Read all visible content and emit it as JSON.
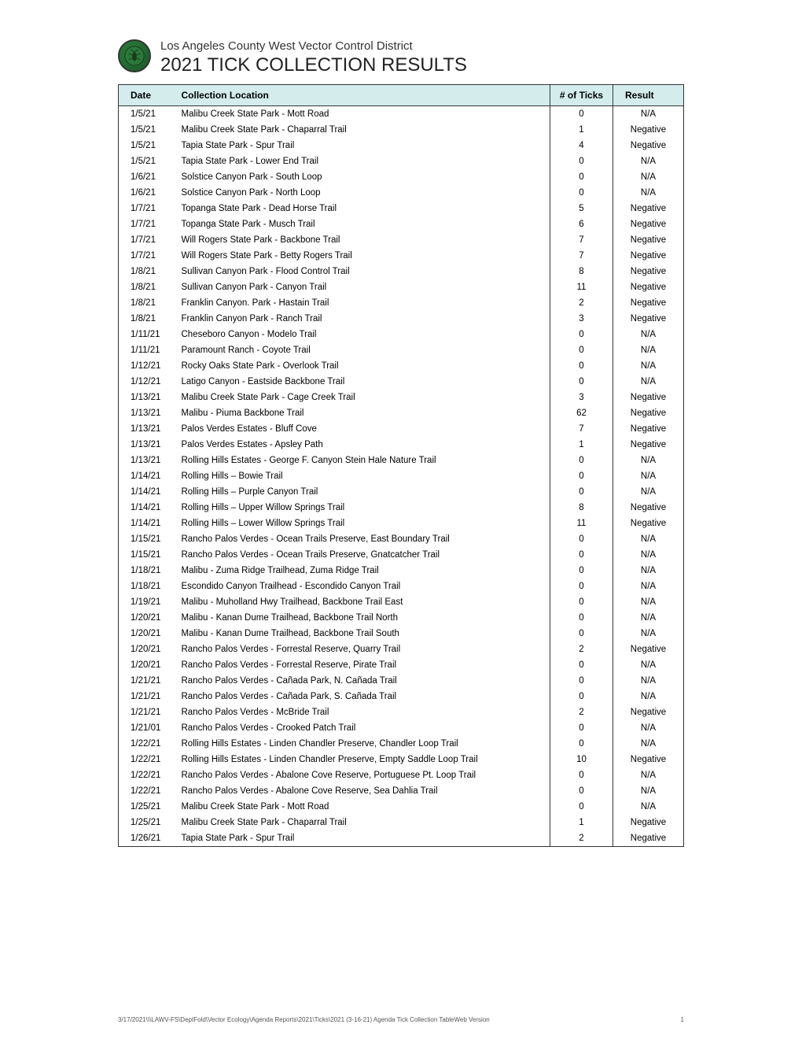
{
  "header": {
    "subtitle": "Los Angeles County West Vector Control District",
    "title": "2021 TICK COLLECTION RESULTS"
  },
  "table": {
    "columns": [
      "Date",
      "Collection Location",
      "# of Ticks",
      "Result"
    ],
    "rows": [
      [
        "1/5/21",
        "Malibu Creek State Park - Mott Road",
        "0",
        "N/A"
      ],
      [
        "1/5/21",
        "Malibu Creek State Park - Chaparral Trail",
        "1",
        "Negative"
      ],
      [
        "1/5/21",
        "Tapia State Park - Spur Trail",
        "4",
        "Negative"
      ],
      [
        "1/5/21",
        "Tapia State Park - Lower End Trail",
        "0",
        "N/A"
      ],
      [
        "1/6/21",
        "Solstice Canyon Park - South Loop",
        "0",
        "N/A"
      ],
      [
        "1/6/21",
        "Solstice Canyon Park - North Loop",
        "0",
        "N/A"
      ],
      [
        "1/7/21",
        "Topanga State Park - Dead Horse Trail",
        "5",
        "Negative"
      ],
      [
        "1/7/21",
        "Topanga State Park - Musch Trail",
        "6",
        "Negative"
      ],
      [
        "1/7/21",
        "Will Rogers State Park - Backbone Trail",
        "7",
        "Negative"
      ],
      [
        "1/7/21",
        "Will Rogers State Park -  Betty Rogers Trail",
        "7",
        "Negative"
      ],
      [
        "1/8/21",
        "Sullivan Canyon Park - Flood Control Trail",
        "8",
        "Negative"
      ],
      [
        "1/8/21",
        "Sullivan Canyon Park - Canyon Trail",
        "11",
        "Negative"
      ],
      [
        "1/8/21",
        "Franklin Canyon. Park - Hastain Trail",
        "2",
        "Negative"
      ],
      [
        "1/8/21",
        "Franklin Canyon Park - Ranch Trail",
        "3",
        "Negative"
      ],
      [
        "1/11/21",
        "Cheseboro Canyon - Modelo Trail",
        "0",
        "N/A"
      ],
      [
        "1/11/21",
        "Paramount Ranch - Coyote Trail",
        "0",
        "N/A"
      ],
      [
        "1/12/21",
        "Rocky Oaks State Park - Overlook Trail",
        "0",
        "N/A"
      ],
      [
        "1/12/21",
        "Latigo Canyon - Eastside Backbone Trail",
        "0",
        "N/A"
      ],
      [
        "1/13/21",
        "Malibu Creek State Park - Cage Creek Trail",
        "3",
        "Negative"
      ],
      [
        "1/13/21",
        "Malibu - Piuma Backbone Trail",
        "62",
        "Negative"
      ],
      [
        "1/13/21",
        "Palos Verdes Estates - Bluff Cove",
        "7",
        "Negative"
      ],
      [
        "1/13/21",
        "Palos Verdes Estates - Apsley Path",
        "1",
        "Negative"
      ],
      [
        "1/13/21",
        "Rolling Hills Estates - George F. Canyon Stein Hale Nature Trail",
        "0",
        "N/A"
      ],
      [
        "1/14/21",
        "Rolling Hills – Bowie Trail",
        "0",
        "N/A"
      ],
      [
        "1/14/21",
        "Rolling Hills – Purple Canyon Trail",
        "0",
        "N/A"
      ],
      [
        "1/14/21",
        "Rolling Hills – Upper Willow Springs Trail",
        "8",
        "Negative"
      ],
      [
        "1/14/21",
        "Rolling Hills – Lower Willow Springs Trail",
        "11",
        "Negative"
      ],
      [
        "1/15/21",
        "Rancho Palos Verdes - Ocean Trails Preserve, East Boundary Trail",
        "0",
        "N/A"
      ],
      [
        "1/15/21",
        "Rancho Palos Verdes - Ocean Trails Preserve, Gnatcatcher Trail",
        "0",
        "N/A"
      ],
      [
        "1/18/21",
        "Malibu - Zuma Ridge Trailhead, Zuma Ridge Trail",
        "0",
        "N/A"
      ],
      [
        "1/18/21",
        "Escondido Canyon Trailhead - Escondido Canyon Trail",
        "0",
        "N/A"
      ],
      [
        "1/19/21",
        "Malibu - Muholland Hwy Trailhead, Backbone Trail East",
        "0",
        "N/A"
      ],
      [
        "1/20/21",
        "Malibu - Kanan Dume Trailhead, Backbone Trail North",
        "0",
        "N/A"
      ],
      [
        "1/20/21",
        "Malibu - Kanan Dume Trailhead, Backbone Trail South",
        "0",
        "N/A"
      ],
      [
        "1/20/21",
        "Rancho Palos Verdes - Forrestal Reserve, Quarry Trail",
        "2",
        "Negative"
      ],
      [
        "1/20/21",
        "Rancho Palos Verdes - Forrestal Reserve, Pirate Trail",
        "0",
        "N/A"
      ],
      [
        "1/21/21",
        "Rancho Palos Verdes - Cañada Park, N. Cañada Trail",
        "0",
        "N/A"
      ],
      [
        "1/21/21",
        "Rancho Palos Verdes - Cañada Park, S. Cañada Trail",
        "0",
        "N/A"
      ],
      [
        "1/21/21",
        "Rancho Palos Verdes - McBride Trail",
        "2",
        "Negative"
      ],
      [
        "1/21/01",
        "Rancho Palos Verdes - Crooked Patch Trail",
        "0",
        "N/A"
      ],
      [
        "1/22/21",
        "Rolling Hills Estates - Linden Chandler Preserve, Chandler Loop Trail",
        "0",
        "N/A"
      ],
      [
        "1/22/21",
        "Rolling Hills Estates - Linden Chandler Preserve, Empty Saddle Loop Trail",
        "10",
        "Negative"
      ],
      [
        "1/22/21",
        "Rancho Palos Verdes - Abalone Cove Reserve, Portuguese Pt. Loop Trail",
        "0",
        "N/A"
      ],
      [
        "1/22/21",
        "Rancho Palos Verdes - Abalone Cove Reserve, Sea Dahlia Trail",
        "0",
        "N/A"
      ],
      [
        "1/25/21",
        "Malibu Creek State Park - Mott Road",
        "0",
        "N/A"
      ],
      [
        "1/25/21",
        "Malibu Creek State Park - Chaparral Trail",
        "1",
        "Negative"
      ],
      [
        "1/26/21",
        "Tapia State Park - Spur Trail",
        "2",
        "Negative"
      ]
    ]
  },
  "footer": {
    "path": "3/17/2021\\\\\\LAWV-FS\\DeptFold\\Vector Ecology\\Agenda Reports\\2021\\Ticks\\2021 (3-16-21) Agenda Tick Collection TableWeb Version",
    "page": "1"
  },
  "styling": {
    "header_bg": "#d4ecec",
    "border_color": "#333333",
    "text_color": "#000000",
    "title_fontsize": 24,
    "subtitle_fontsize": 15,
    "header_fontsize": 12,
    "cell_fontsize": 11.5,
    "footer_fontsize": 8
  }
}
